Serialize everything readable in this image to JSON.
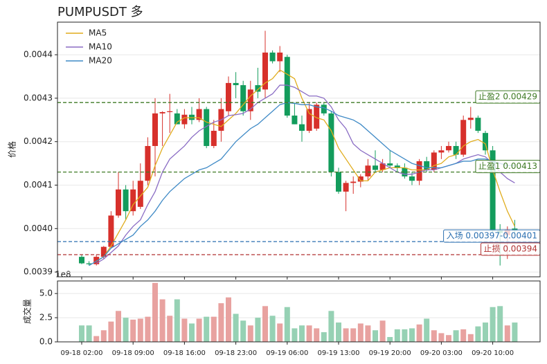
{
  "chart_data": [
    {
      "type": "candlestick",
      "title": "PUMPUSDT  多",
      "ylabel": "价格",
      "open": [
        0.003935,
        0.00392,
        0.003918,
        0.003935,
        0.003958,
        0.00403,
        0.00409,
        0.00404,
        0.00405,
        0.00411,
        0.00419,
        0.004265,
        0.004268,
        0.004265,
        0.00424,
        0.004262,
        0.00425,
        0.004275,
        0.00419,
        0.004225,
        0.00427,
        0.004335,
        0.00433,
        0.00427,
        0.00433,
        0.00432,
        0.004405,
        0.004385,
        0.004395,
        0.00426,
        0.00424,
        0.004225,
        0.00423,
        0.004285,
        0.004265,
        0.00413,
        0.004085,
        0.004105,
        0.004108,
        0.00412,
        0.004145,
        0.004135,
        0.00415,
        0.004145,
        0.00414,
        0.00412,
        0.00411,
        0.004155,
        0.004135,
        0.004175,
        0.00418,
        0.00419,
        0.00417,
        0.00425,
        0.004255,
        0.00422,
        0.00418,
        0.003995,
        0.003985,
        0.004
      ],
      "high": [
        0.00394,
        0.003925,
        0.00394,
        0.00396,
        0.00404,
        0.00413,
        0.0041,
        0.00411,
        0.00415,
        0.00421,
        0.0043,
        0.00427,
        0.00431,
        0.004275,
        0.004275,
        0.00428,
        0.0043,
        0.00428,
        0.00425,
        0.0043,
        0.00435,
        0.00436,
        0.00434,
        0.00434,
        0.00437,
        0.004455,
        0.00441,
        0.00442,
        0.0044,
        0.00429,
        0.00426,
        0.00429,
        0.00429,
        0.00429,
        0.00427,
        0.00414,
        0.00411,
        0.00412,
        0.004125,
        0.00416,
        0.00418,
        0.00416,
        0.00418,
        0.00415,
        0.00415,
        0.00413,
        0.00416,
        0.004165,
        0.00418,
        0.00419,
        0.0042,
        0.0042,
        0.00426,
        0.00428,
        0.00426,
        0.004225,
        0.00419,
        0.00401,
        0.004005,
        0.00402
      ],
      "low": [
        0.003918,
        0.003915,
        0.003915,
        0.00393,
        0.003955,
        0.004025,
        0.00402,
        0.00403,
        0.004045,
        0.0041,
        0.00412,
        0.00419,
        0.00422,
        0.00424,
        0.00423,
        0.00424,
        0.004245,
        0.004185,
        0.004185,
        0.0042,
        0.00426,
        0.0043,
        0.00426,
        0.00425,
        0.0043,
        0.0043,
        0.00438,
        0.00436,
        0.004255,
        0.00424,
        0.0042,
        0.00422,
        0.004225,
        0.00426,
        0.00412,
        0.00408,
        0.00404,
        0.00408,
        0.004095,
        0.00411,
        0.00413,
        0.00413,
        0.00414,
        0.00413,
        0.004115,
        0.0041,
        0.0041,
        0.00413,
        0.00413,
        0.00416,
        0.004175,
        0.00416,
        0.004165,
        0.00423,
        0.00422,
        0.00417,
        0.00399,
        0.003915,
        0.00393,
        0.003985
      ],
      "close": [
        0.00392,
        0.003918,
        0.003935,
        0.003958,
        0.00403,
        0.00409,
        0.00404,
        0.00409,
        0.00411,
        0.00419,
        0.004265,
        0.004268,
        0.00427,
        0.00424,
        0.004262,
        0.00425,
        0.004275,
        0.00419,
        0.004225,
        0.004275,
        0.004335,
        0.00433,
        0.00427,
        0.00432,
        0.004315,
        0.004405,
        0.004385,
        0.004405,
        0.00426,
        0.00424,
        0.004225,
        0.004275,
        0.004285,
        0.004265,
        0.00413,
        0.004085,
        0.004105,
        0.004108,
        0.00412,
        0.004145,
        0.004135,
        0.00415,
        0.004145,
        0.00414,
        0.00412,
        0.00411,
        0.004155,
        0.004135,
        0.004175,
        0.00418,
        0.00419,
        0.00417,
        0.00425,
        0.004255,
        0.004225,
        0.00418,
        0.003995,
        0.00399,
        0.003998,
        0.003995
      ],
      "up_color": "#d7302b",
      "down_color": "#139c5c",
      "series": [
        {
          "name": "MA5",
          "color": "#e0ac1c",
          "values": [
            null,
            null,
            0.003925,
            0.003935,
            0.00396,
            0.00399,
            0.00402,
            0.004055,
            0.004075,
            0.004095,
            0.004145,
            0.004185,
            0.004215,
            0.004245,
            0.004255,
            0.004255,
            0.004255,
            0.004245,
            0.00424,
            0.004235,
            0.00425,
            0.004265,
            0.004285,
            0.004305,
            0.00432,
            0.004335,
            0.004345,
            0.004365,
            0.004355,
            0.004345,
            0.0043,
            0.004265,
            0.004255,
            0.00425,
            0.004225,
            0.004185,
            0.00416,
            0.004135,
            0.00411,
            0.00411,
            0.00413,
            0.004135,
            0.00414,
            0.00414,
            0.00414,
            0.004135,
            0.004135,
            0.004135,
            0.004145,
            0.00415,
            0.004165,
            0.00417,
            0.00419,
            0.0042,
            0.004205,
            0.004195,
            0.004135,
            0.004085,
            0.00404,
            0.004005
          ]
        },
        {
          "name": "MA10",
          "color": "#8a6cc4",
          "values": [
            null,
            null,
            0.00392,
            0.00393,
            0.003945,
            0.00396,
            0.003985,
            0.004005,
            0.00402,
            0.004055,
            0.004085,
            0.00413,
            0.00416,
            0.004175,
            0.00419,
            0.00421,
            0.004225,
            0.004235,
            0.004245,
            0.00425,
            0.00426,
            0.004262,
            0.004265,
            0.004275,
            0.00429,
            0.0043,
            0.00431,
            0.00433,
            0.00433,
            0.004325,
            0.004315,
            0.004305,
            0.004305,
            0.0043,
            0.00428,
            0.00425,
            0.00423,
            0.004195,
            0.00418,
            0.00417,
            0.00416,
            0.00415,
            0.00414,
            0.00413,
            0.004125,
            0.004125,
            0.00413,
            0.004135,
            0.004135,
            0.00414,
            0.004145,
            0.00415,
            0.00416,
            0.004165,
            0.00417,
            0.004165,
            0.00415,
            0.00413,
            0.004115,
            0.004105
          ]
        },
        {
          "name": "MA20",
          "color": "#3f8ac6",
          "values": [
            null,
            0.003915,
            0.003925,
            0.003935,
            0.003955,
            0.003965,
            0.003975,
            0.003985,
            0.004005,
            0.00402,
            0.00404,
            0.004065,
            0.004085,
            0.0041,
            0.004115,
            0.004125,
            0.004135,
            0.00414,
            0.00415,
            0.00416,
            0.00418,
            0.0042,
            0.004215,
            0.00423,
            0.00424,
            0.004255,
            0.00427,
            0.004285,
            0.00429,
            0.004288,
            0.004285,
            0.004285,
            0.00428,
            0.004278,
            0.00427,
            0.00426,
            0.004255,
            0.00425,
            0.00424,
            0.004225,
            0.00421,
            0.004195,
            0.00418,
            0.00417,
            0.00416,
            0.00415,
            0.004145,
            0.00414,
            0.00414,
            0.00414,
            0.004145,
            0.00415,
            0.004155,
            0.004155,
            0.00416,
            0.00416,
            0.004155,
            0.00415,
            0.004145,
            0.004145
          ]
        }
      ],
      "hlines": [
        {
          "label": "止盈2 0.00429",
          "value": 0.00429,
          "color": "#3e7a24"
        },
        {
          "label": "止盈1 0.00413",
          "value": 0.00413,
          "color": "#3e7a24"
        },
        {
          "label": "入场 0.00397-0.00401",
          "value": 0.00397,
          "color": "#2a6fb0"
        },
        {
          "label": "止损 0.00394",
          "value": 0.00394,
          "color": "#b03030"
        }
      ],
      "ylim": [
        0.003889,
        0.004475
      ],
      "yticks": [
        0.0039,
        {
          "value": 0.004,
          "label": "0.0040"
        },
        0.0041,
        0.0042,
        0.0043,
        0.0044
      ],
      "grid": true,
      "legend": "upper left"
    },
    {
      "type": "bar",
      "ylabel": "成交量",
      "offset_label": "1e8",
      "categories": [
        "09-18 02:00",
        null,
        null,
        null,
        null,
        null,
        null,
        "09-18 09:00",
        null,
        null,
        null,
        null,
        null,
        null,
        "09-18 16:00",
        null,
        null,
        null,
        null,
        null,
        null,
        "09-18 23:00",
        null,
        null,
        null,
        null,
        null,
        null,
        "09-19 06:00",
        null,
        null,
        null,
        null,
        null,
        null,
        "09-19 13:00",
        null,
        null,
        null,
        null,
        null,
        null,
        "09-19 20:00",
        null,
        null,
        null,
        null,
        null,
        null,
        "09-20 03:00",
        null,
        null,
        null,
        null,
        null,
        null,
        "09-20 10:00",
        null,
        null,
        null
      ],
      "values": [
        1.7,
        1.7,
        0.6,
        1.2,
        2.1,
        3.2,
        2.5,
        2.3,
        2.4,
        2.6,
        6.1,
        4.4,
        2.7,
        4.4,
        2.4,
        1.9,
        2.4,
        2.6,
        2.6,
        4.0,
        4.6,
        2.9,
        2.2,
        1.7,
        2.5,
        3.7,
        2.7,
        1.9,
        3.6,
        1.4,
        1.7,
        1.7,
        1.4,
        1.0,
        3.2,
        2.0,
        1.4,
        1.4,
        1.9,
        1.7,
        1.2,
        2.2,
        0.5,
        1.3,
        1.3,
        1.4,
        1.8,
        2.4,
        1.2,
        0.9,
        0.7,
        1.2,
        1.3,
        0.8,
        1.6,
        2.0,
        3.6,
        3.7,
        1.7,
        2.0
      ],
      "up_color": "#e8a2a0",
      "down_color": "#96d1b4",
      "ylim": [
        0,
        6.3
      ],
      "yticks": [
        {
          "value": 0,
          "label": "0.0"
        },
        2.5,
        {
          "value": 5,
          "label": "5.0"
        }
      ],
      "grid": true
    }
  ]
}
